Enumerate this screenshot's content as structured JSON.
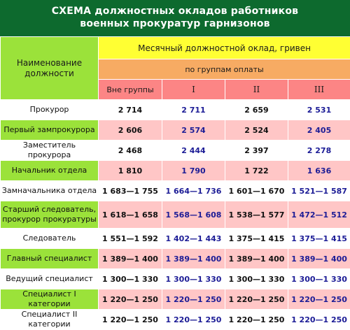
{
  "title": {
    "line1": "СХЕМА должностных окладов работников",
    "line2": "военных прокуратур гарнизонов"
  },
  "header": {
    "name_label": "Наименование должности",
    "monthly_label": "Месячный должностной оклад, гривен",
    "groups_label": "по группам оплаты",
    "columns": [
      "Вне группы",
      "I",
      "II",
      "III"
    ]
  },
  "rows": [
    {
      "name": "Прокурор",
      "values": [
        "2 714",
        "2 711",
        "2 659",
        "2 531"
      ]
    },
    {
      "name": "Первый зампрокурора",
      "values": [
        "2 606",
        "2 574",
        "2 524",
        "2 405"
      ]
    },
    {
      "name": "Заместитель прокурора",
      "values": [
        "2 468",
        "2 444",
        "2 397",
        "2 278"
      ]
    },
    {
      "name": "Начальник отдела",
      "values": [
        "1 810",
        "1 790",
        "1 722",
        "1 636"
      ]
    },
    {
      "name": "Замначальника отдела",
      "values": [
        "1 683—1 755",
        "1 664—1 736",
        "1 601—1 670",
        "1 521—1 587"
      ]
    },
    {
      "name": "Старший следователь, прокурор прокуратуры",
      "values": [
        "1 618—1 658",
        "1 568—1 608",
        "1 538—1 577",
        "1 472—1 512"
      ]
    },
    {
      "name": "Следователь",
      "values": [
        "1 551—1 592",
        "1 402—1 443",
        "1 375—1 415",
        "1 375—1 415"
      ]
    },
    {
      "name": "Главный специалист",
      "values": [
        "1 389—1 400",
        "1 389—1 400",
        "1 389—1 400",
        "1 389—1 400"
      ]
    },
    {
      "name": "Ведущий специалист",
      "values": [
        "1 300—1 330",
        "1 300—1 330",
        "1 300—1 330",
        "1 300—1 330"
      ]
    },
    {
      "name": "Специалист I категории",
      "values": [
        "1 220—1 250",
        "1 220—1 250",
        "1 220—1 250",
        "1 220—1 250"
      ]
    },
    {
      "name": "Специалист II категории",
      "values": [
        "1 220—1 250",
        "1 220—1 250",
        "1 220—1 250",
        "1 220—1 250"
      ]
    }
  ],
  "colors": {
    "title_bg": "#0d6a2e",
    "name_green": "#9be23a",
    "monthly_yellow": "#ffff33",
    "groups_orange": "#f7ab63",
    "sub_red": "#fc8585",
    "row_pink": "#ffc6c6",
    "value_blue": "#1c1c96"
  }
}
